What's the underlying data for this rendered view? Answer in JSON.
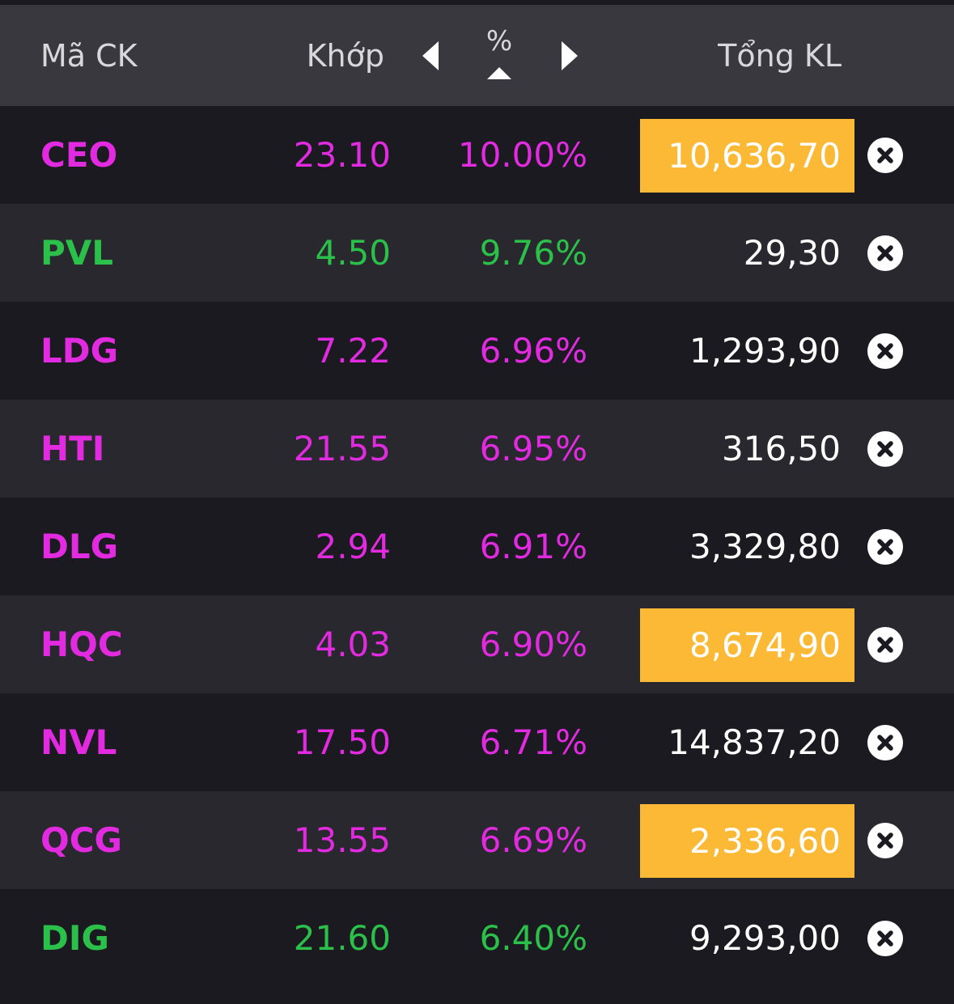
{
  "header": {
    "code_label": "Mã CK",
    "price_label": "Khớp",
    "pct_label": "%",
    "volume_label": "Tổng KL"
  },
  "colors": {
    "up_strong": "#e22be0",
    "up": "#2bc04a",
    "highlight": "#fcb935"
  },
  "rows": [
    {
      "code": "CEO",
      "price": "23.10",
      "pct": "10.00%",
      "volume": "10,636,70",
      "color": "magenta",
      "highlight": true
    },
    {
      "code": "PVL",
      "price": "4.50",
      "pct": "9.76%",
      "volume": "29,30",
      "color": "green",
      "highlight": false
    },
    {
      "code": "LDG",
      "price": "7.22",
      "pct": "6.96%",
      "volume": "1,293,90",
      "color": "magenta",
      "highlight": false
    },
    {
      "code": "HTI",
      "price": "21.55",
      "pct": "6.95%",
      "volume": "316,50",
      "color": "magenta",
      "highlight": false
    },
    {
      "code": "DLG",
      "price": "2.94",
      "pct": "6.91%",
      "volume": "3,329,80",
      "color": "magenta",
      "highlight": false
    },
    {
      "code": "HQC",
      "price": "4.03",
      "pct": "6.90%",
      "volume": "8,674,90",
      "color": "magenta",
      "highlight": true
    },
    {
      "code": "NVL",
      "price": "17.50",
      "pct": "6.71%",
      "volume": "14,837,20",
      "color": "magenta",
      "highlight": false
    },
    {
      "code": "QCG",
      "price": "13.55",
      "pct": "6.69%",
      "volume": "2,336,60",
      "color": "magenta",
      "highlight": true
    },
    {
      "code": "DIG",
      "price": "21.60",
      "pct": "6.40%",
      "volume": "9,293,00",
      "color": "green",
      "highlight": false
    }
  ]
}
